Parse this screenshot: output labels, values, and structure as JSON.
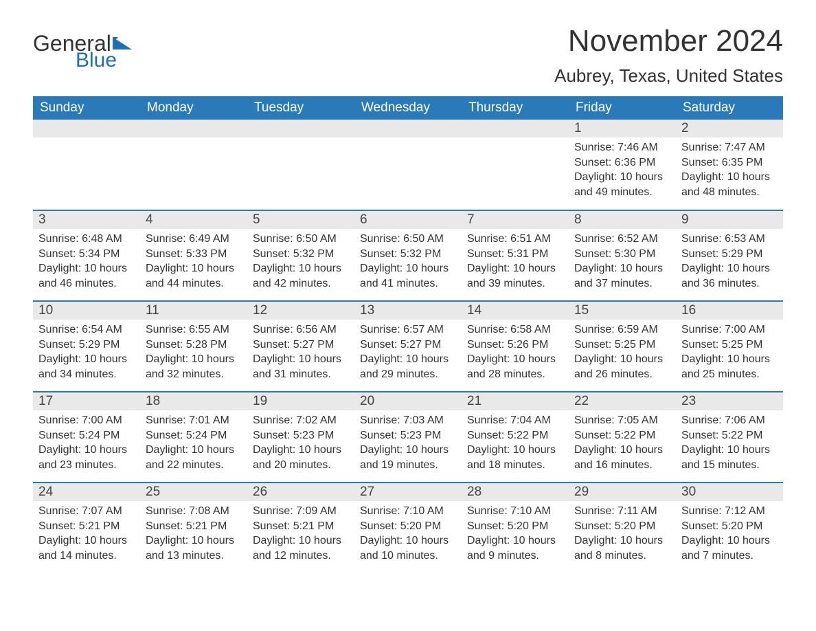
{
  "logo": {
    "word1": "General",
    "word2": "Blue",
    "flag_color": "#1f6fb2",
    "word2_color": "#1f6fb2"
  },
  "header": {
    "month": "November 2024",
    "location": "Aubrey, Texas, United States"
  },
  "calendar": {
    "header_bg": "#2a7ab9",
    "header_text_color": "#ffffff",
    "daynum_bg": "#e9e9e9",
    "border_color": "#2a7ab9",
    "text_color": "#333333",
    "body_bg": "#ffffff",
    "font_family": "Arial",
    "header_fontsize": 19,
    "daynum_fontsize": 19,
    "body_fontsize": 16,
    "day_headers": [
      "Sunday",
      "Monday",
      "Tuesday",
      "Wednesday",
      "Thursday",
      "Friday",
      "Saturday"
    ],
    "weeks": [
      [
        {
          "empty": true
        },
        {
          "empty": true
        },
        {
          "empty": true
        },
        {
          "empty": true
        },
        {
          "empty": true
        },
        {
          "day": "1",
          "sunrise": "Sunrise: 7:46 AM",
          "sunset": "Sunset: 6:36 PM",
          "daylight": "Daylight: 10 hours and 49 minutes."
        },
        {
          "day": "2",
          "sunrise": "Sunrise: 7:47 AM",
          "sunset": "Sunset: 6:35 PM",
          "daylight": "Daylight: 10 hours and 48 minutes."
        }
      ],
      [
        {
          "day": "3",
          "sunrise": "Sunrise: 6:48 AM",
          "sunset": "Sunset: 5:34 PM",
          "daylight": "Daylight: 10 hours and 46 minutes."
        },
        {
          "day": "4",
          "sunrise": "Sunrise: 6:49 AM",
          "sunset": "Sunset: 5:33 PM",
          "daylight": "Daylight: 10 hours and 44 minutes."
        },
        {
          "day": "5",
          "sunrise": "Sunrise: 6:50 AM",
          "sunset": "Sunset: 5:32 PM",
          "daylight": "Daylight: 10 hours and 42 minutes."
        },
        {
          "day": "6",
          "sunrise": "Sunrise: 6:50 AM",
          "sunset": "Sunset: 5:32 PM",
          "daylight": "Daylight: 10 hours and 41 minutes."
        },
        {
          "day": "7",
          "sunrise": "Sunrise: 6:51 AM",
          "sunset": "Sunset: 5:31 PM",
          "daylight": "Daylight: 10 hours and 39 minutes."
        },
        {
          "day": "8",
          "sunrise": "Sunrise: 6:52 AM",
          "sunset": "Sunset: 5:30 PM",
          "daylight": "Daylight: 10 hours and 37 minutes."
        },
        {
          "day": "9",
          "sunrise": "Sunrise: 6:53 AM",
          "sunset": "Sunset: 5:29 PM",
          "daylight": "Daylight: 10 hours and 36 minutes."
        }
      ],
      [
        {
          "day": "10",
          "sunrise": "Sunrise: 6:54 AM",
          "sunset": "Sunset: 5:29 PM",
          "daylight": "Daylight: 10 hours and 34 minutes."
        },
        {
          "day": "11",
          "sunrise": "Sunrise: 6:55 AM",
          "sunset": "Sunset: 5:28 PM",
          "daylight": "Daylight: 10 hours and 32 minutes."
        },
        {
          "day": "12",
          "sunrise": "Sunrise: 6:56 AM",
          "sunset": "Sunset: 5:27 PM",
          "daylight": "Daylight: 10 hours and 31 minutes."
        },
        {
          "day": "13",
          "sunrise": "Sunrise: 6:57 AM",
          "sunset": "Sunset: 5:27 PM",
          "daylight": "Daylight: 10 hours and 29 minutes."
        },
        {
          "day": "14",
          "sunrise": "Sunrise: 6:58 AM",
          "sunset": "Sunset: 5:26 PM",
          "daylight": "Daylight: 10 hours and 28 minutes."
        },
        {
          "day": "15",
          "sunrise": "Sunrise: 6:59 AM",
          "sunset": "Sunset: 5:25 PM",
          "daylight": "Daylight: 10 hours and 26 minutes."
        },
        {
          "day": "16",
          "sunrise": "Sunrise: 7:00 AM",
          "sunset": "Sunset: 5:25 PM",
          "daylight": "Daylight: 10 hours and 25 minutes."
        }
      ],
      [
        {
          "day": "17",
          "sunrise": "Sunrise: 7:00 AM",
          "sunset": "Sunset: 5:24 PM",
          "daylight": "Daylight: 10 hours and 23 minutes."
        },
        {
          "day": "18",
          "sunrise": "Sunrise: 7:01 AM",
          "sunset": "Sunset: 5:24 PM",
          "daylight": "Daylight: 10 hours and 22 minutes."
        },
        {
          "day": "19",
          "sunrise": "Sunrise: 7:02 AM",
          "sunset": "Sunset: 5:23 PM",
          "daylight": "Daylight: 10 hours and 20 minutes."
        },
        {
          "day": "20",
          "sunrise": "Sunrise: 7:03 AM",
          "sunset": "Sunset: 5:23 PM",
          "daylight": "Daylight: 10 hours and 19 minutes."
        },
        {
          "day": "21",
          "sunrise": "Sunrise: 7:04 AM",
          "sunset": "Sunset: 5:22 PM",
          "daylight": "Daylight: 10 hours and 18 minutes."
        },
        {
          "day": "22",
          "sunrise": "Sunrise: 7:05 AM",
          "sunset": "Sunset: 5:22 PM",
          "daylight": "Daylight: 10 hours and 16 minutes."
        },
        {
          "day": "23",
          "sunrise": "Sunrise: 7:06 AM",
          "sunset": "Sunset: 5:22 PM",
          "daylight": "Daylight: 10 hours and 15 minutes."
        }
      ],
      [
        {
          "day": "24",
          "sunrise": "Sunrise: 7:07 AM",
          "sunset": "Sunset: 5:21 PM",
          "daylight": "Daylight: 10 hours and 14 minutes."
        },
        {
          "day": "25",
          "sunrise": "Sunrise: 7:08 AM",
          "sunset": "Sunset: 5:21 PM",
          "daylight": "Daylight: 10 hours and 13 minutes."
        },
        {
          "day": "26",
          "sunrise": "Sunrise: 7:09 AM",
          "sunset": "Sunset: 5:21 PM",
          "daylight": "Daylight: 10 hours and 12 minutes."
        },
        {
          "day": "27",
          "sunrise": "Sunrise: 7:10 AM",
          "sunset": "Sunset: 5:20 PM",
          "daylight": "Daylight: 10 hours and 10 minutes."
        },
        {
          "day": "28",
          "sunrise": "Sunrise: 7:10 AM",
          "sunset": "Sunset: 5:20 PM",
          "daylight": "Daylight: 10 hours and 9 minutes."
        },
        {
          "day": "29",
          "sunrise": "Sunrise: 7:11 AM",
          "sunset": "Sunset: 5:20 PM",
          "daylight": "Daylight: 10 hours and 8 minutes."
        },
        {
          "day": "30",
          "sunrise": "Sunrise: 7:12 AM",
          "sunset": "Sunset: 5:20 PM",
          "daylight": "Daylight: 10 hours and 7 minutes."
        }
      ]
    ]
  }
}
